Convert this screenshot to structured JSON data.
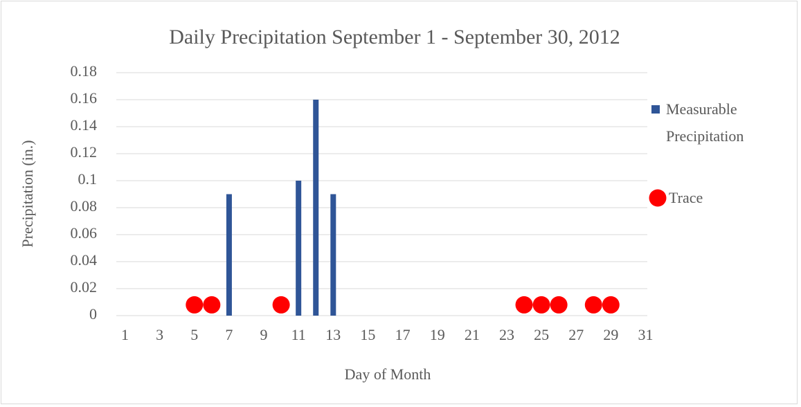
{
  "chart_data": {
    "type": "bar",
    "title": "Daily Precipitation September 1 - September 30, 2012",
    "x_label": "Day of Month",
    "y_label": "Precipitation (in.)",
    "categories": [
      "1",
      null,
      "3",
      null,
      "5",
      null,
      "7",
      null,
      "9",
      null,
      "11",
      null,
      "13",
      null,
      "15",
      null,
      "17",
      null,
      "19",
      null,
      "21",
      null,
      "23",
      null,
      "25",
      null,
      "27",
      null,
      "29",
      null,
      "31"
    ],
    "series": [
      {
        "name": "Measurable Precipitation",
        "type": "bar",
        "color": "#2f5597",
        "values": [
          null,
          null,
          null,
          null,
          null,
          null,
          0.09,
          null,
          null,
          null,
          0.1,
          0.16,
          0.09,
          null,
          null,
          null,
          null,
          null,
          null,
          null,
          null,
          null,
          null,
          null,
          null,
          null,
          null,
          null,
          null,
          null,
          null
        ]
      },
      {
        "name": "Trace",
        "type": "scatter",
        "color": "#ff0000",
        "values": [
          null,
          null,
          null,
          null,
          0.008,
          0.008,
          null,
          null,
          null,
          0.008,
          null,
          null,
          null,
          null,
          null,
          null,
          null,
          null,
          null,
          null,
          null,
          null,
          null,
          0.008,
          0.008,
          0.008,
          null,
          0.008,
          0.008,
          null,
          null
        ]
      }
    ],
    "ylim": [
      0,
      0.18
    ],
    "yticks": [
      0,
      0.02,
      0.04,
      0.06,
      0.08,
      0.1,
      0.12,
      0.14,
      0.16,
      0.18
    ],
    "grid": true,
    "legend": "right"
  }
}
